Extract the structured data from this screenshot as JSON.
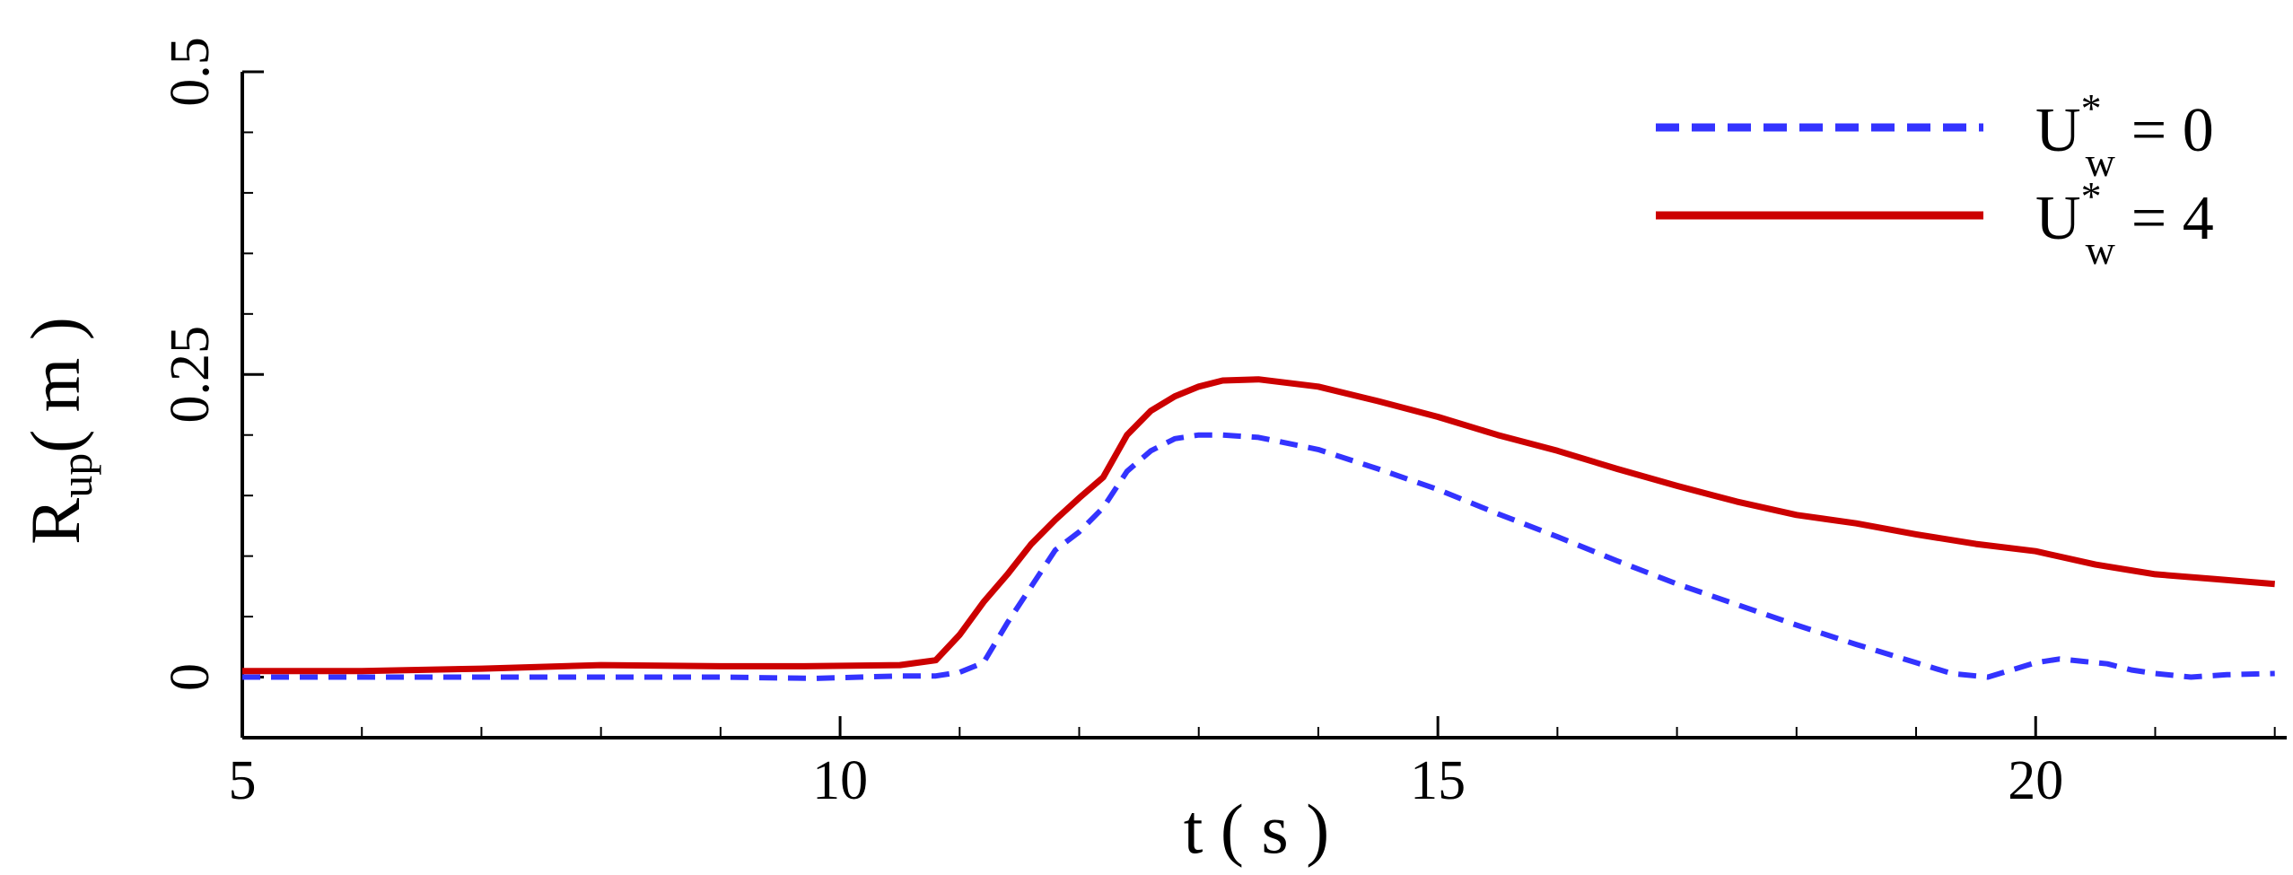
{
  "chart_data": {
    "type": "line",
    "title": "",
    "xlabel": "t ( s )",
    "ylabel": {
      "main": "R",
      "sub": "up",
      "rest": "( m )"
    },
    "xlim": [
      5,
      22.1
    ],
    "ylim": [
      -0.05,
      0.5
    ],
    "xticks": [
      5,
      10,
      15,
      20
    ],
    "xtick_labels": [
      "5",
      "10",
      "15",
      "20"
    ],
    "yticks": [
      0,
      0.25,
      0.5
    ],
    "ytick_labels": [
      "0",
      "0.25",
      "0.5"
    ],
    "legend_position": "top-right",
    "series": [
      {
        "name": "U*w = 0",
        "legend": {
          "base": "U",
          "sup": "*",
          "sub": "w",
          "rest": "= 0"
        },
        "color": "#3333ff",
        "style": "dashed",
        "x": [
          5,
          6,
          7,
          8,
          9,
          9.8,
          10.5,
          10.8,
          11.0,
          11.2,
          11.4,
          11.6,
          11.8,
          12.0,
          12.2,
          12.4,
          12.6,
          12.8,
          13.0,
          13.2,
          13.5,
          14.0,
          14.5,
          15.0,
          15.5,
          16.0,
          16.5,
          17.0,
          17.5,
          18.0,
          18.5,
          19.0,
          19.3,
          19.6,
          19.8,
          20.0,
          20.2,
          20.4,
          20.6,
          20.8,
          21.0,
          21.3,
          21.6,
          22.0
        ],
        "y": [
          0.0,
          0.0,
          0.0,
          0.0,
          0.0,
          -0.001,
          0.001,
          0.001,
          0.004,
          0.012,
          0.045,
          0.075,
          0.105,
          0.12,
          0.14,
          0.17,
          0.187,
          0.197,
          0.2,
          0.2,
          0.198,
          0.188,
          0.172,
          0.155,
          0.135,
          0.116,
          0.096,
          0.077,
          0.06,
          0.043,
          0.027,
          0.012,
          0.003,
          0.0,
          0.006,
          0.012,
          0.015,
          0.013,
          0.011,
          0.006,
          0.003,
          0.0,
          0.002,
          0.003
        ]
      },
      {
        "name": "U*w = 4",
        "legend": {
          "base": "U",
          "sup": "*",
          "sub": "w",
          "rest": "= 4"
        },
        "color": "#cc0000",
        "style": "solid",
        "x": [
          5,
          6,
          7,
          8,
          9,
          9.7,
          10.5,
          10.8,
          11.0,
          11.2,
          11.4,
          11.6,
          11.8,
          12.0,
          12.2,
          12.4,
          12.6,
          12.8,
          13.0,
          13.2,
          13.5,
          14.0,
          14.5,
          15.0,
          15.5,
          16.0,
          16.5,
          17.0,
          17.5,
          18.0,
          18.5,
          19.0,
          19.5,
          20.0,
          20.5,
          21.0,
          21.5,
          22.0
        ],
        "y": [
          0.005,
          0.005,
          0.007,
          0.01,
          0.009,
          0.009,
          0.01,
          0.014,
          0.035,
          0.062,
          0.085,
          0.11,
          0.13,
          0.148,
          0.165,
          0.2,
          0.22,
          0.232,
          0.24,
          0.245,
          0.246,
          0.24,
          0.228,
          0.215,
          0.2,
          0.187,
          0.172,
          0.158,
          0.145,
          0.134,
          0.127,
          0.118,
          0.11,
          0.104,
          0.093,
          0.085,
          0.081,
          0.077
        ]
      }
    ]
  }
}
